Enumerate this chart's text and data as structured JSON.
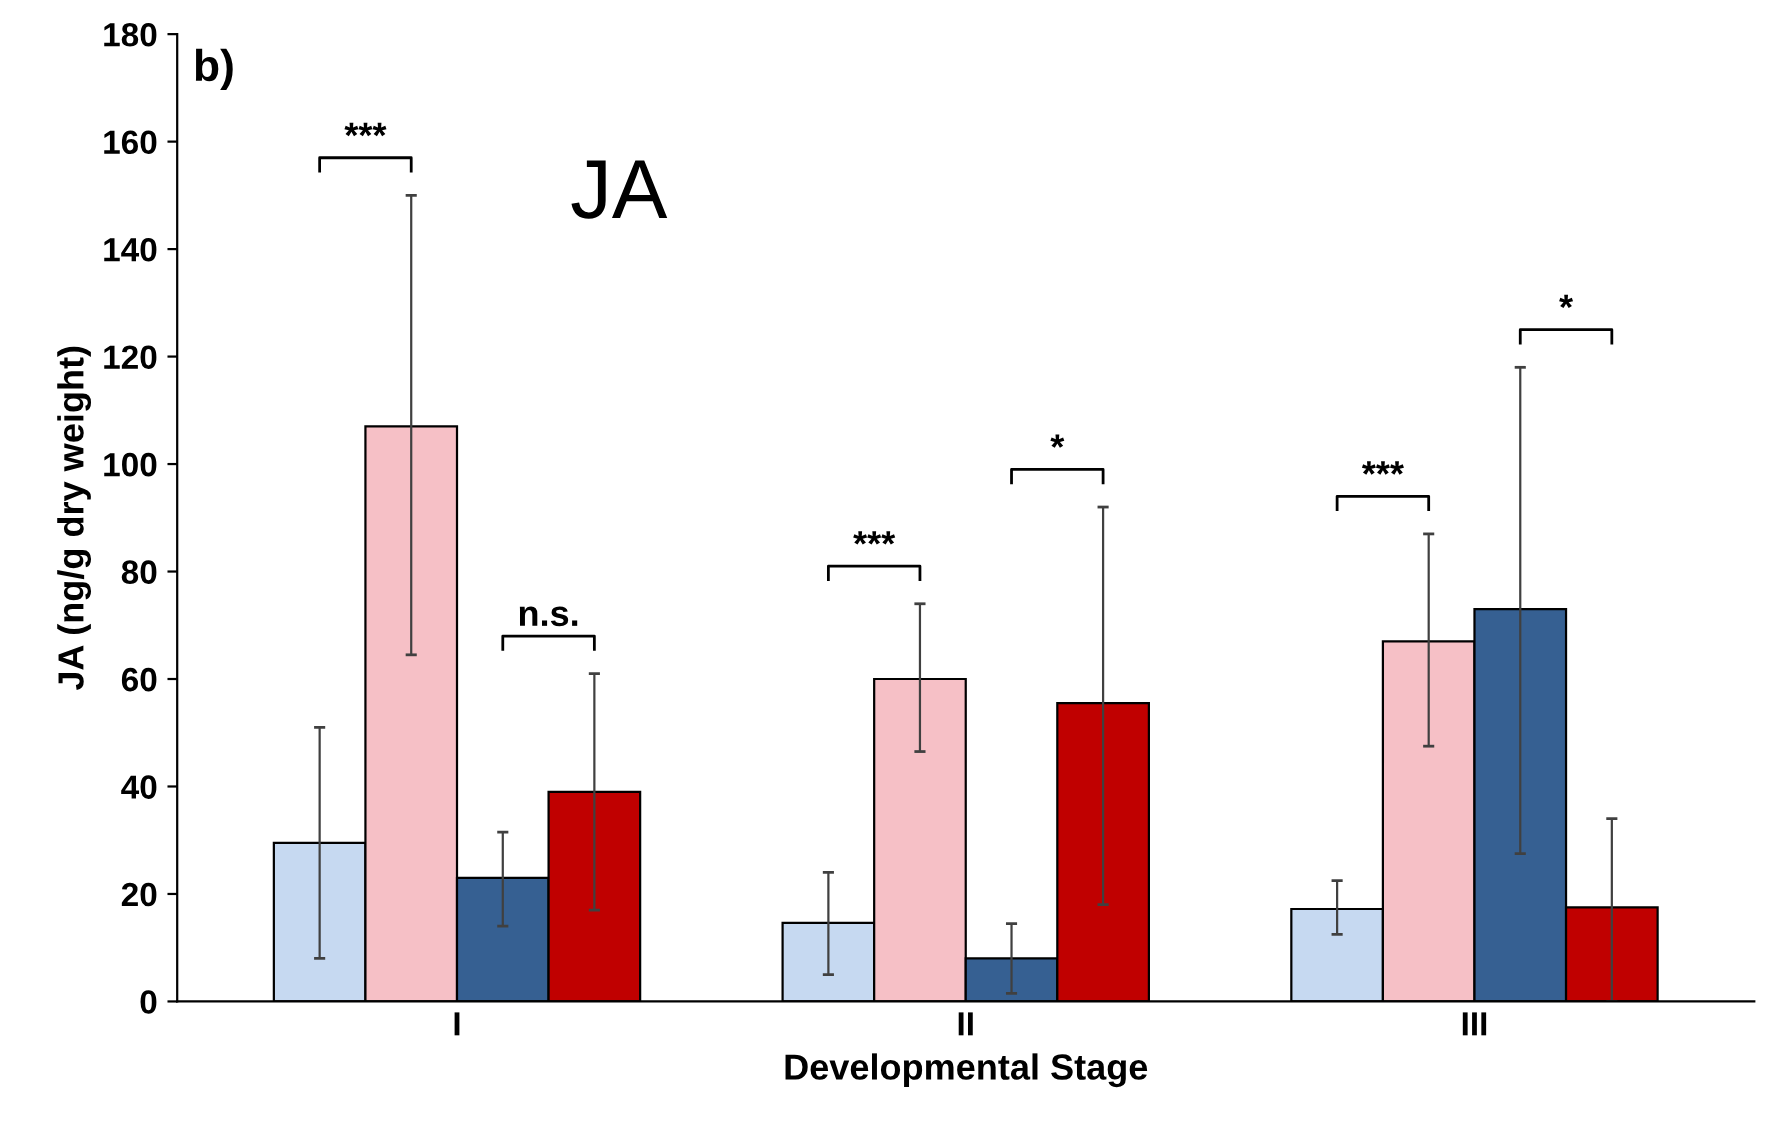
{
  "chart_data": {
    "type": "bar",
    "title": "JA",
    "xlabel": "Developmental Stage",
    "ylabel": "JA (ng/g dry weight)",
    "categories": [
      "I",
      "II",
      "III"
    ],
    "series": [
      {
        "color": "#c6d9f1",
        "values": [
          29.5,
          14.6,
          17.2
        ],
        "errors": [
          [
            8,
            51
          ],
          [
            5,
            24
          ],
          [
            12.5,
            22.5
          ]
        ]
      },
      {
        "color": "#f6c0c6",
        "values": [
          107,
          60,
          67
        ],
        "errors": [
          [
            64.5,
            150
          ],
          [
            46.5,
            74
          ],
          [
            47.5,
            87
          ]
        ]
      },
      {
        "color": "#366092",
        "values": [
          23,
          8,
          73
        ],
        "errors": [
          [
            14,
            31.5
          ],
          [
            1.5,
            14.5
          ],
          [
            27.5,
            118
          ]
        ]
      },
      {
        "color": "#c00000",
        "values": [
          39,
          55.5,
          17.5
        ],
        "errors": [
          [
            17,
            61
          ],
          [
            18,
            92
          ],
          [
            0,
            34
          ]
        ]
      }
    ],
    "ylim": [
      0,
      180
    ],
    "yticks": [
      0,
      20,
      40,
      60,
      80,
      100,
      120,
      140,
      160,
      180
    ],
    "grid": false,
    "legend": false,
    "annotations": [
      "b)",
      "***",
      "n.s.",
      "***",
      "*",
      "***",
      "*"
    ]
  }
}
